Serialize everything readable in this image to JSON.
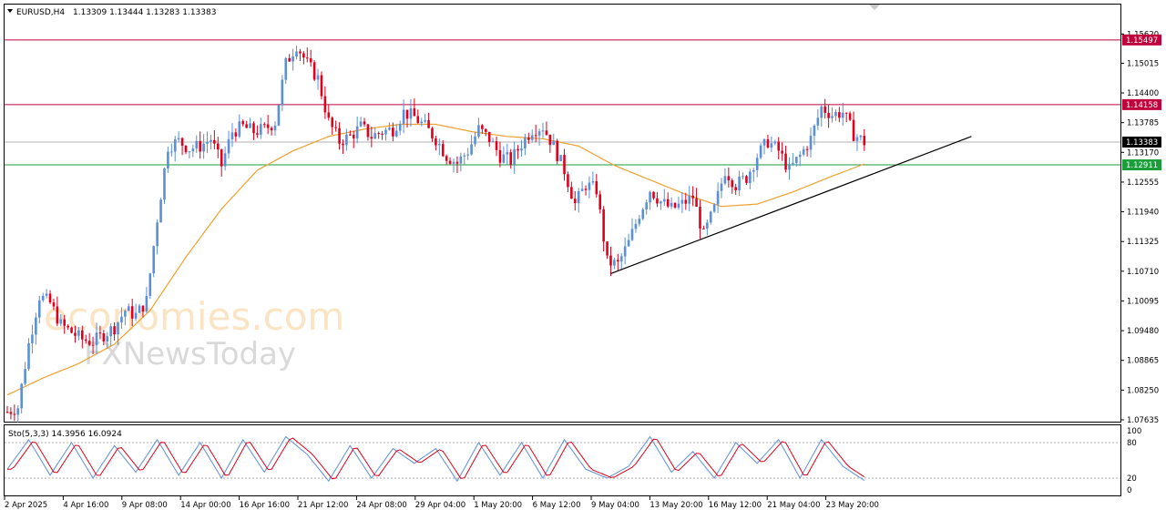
{
  "header": {
    "symbol": "EURUSD,H4",
    "ohlc": "1.13309 1.13444 1.13283 1.13383"
  },
  "watermark": {
    "brand": "economies.com",
    "sub": "FXNewsToday"
  },
  "chart_data": {
    "type": "candlestick",
    "price_axis": {
      "range": [
        1.07635,
        1.1572
      ],
      "ticks": [
        "1.15620",
        "1.15015",
        "1.14400",
        "1.13785",
        "1.13170",
        "1.12555",
        "1.11940",
        "1.11325",
        "1.10710",
        "1.10095",
        "1.09480",
        "1.08865",
        "1.08250",
        "1.07635"
      ]
    },
    "time_axis": {
      "ticks": [
        "2 Apr 2025",
        "4 Apr 16:00",
        "9 Apr 08:00",
        "14 Apr 00:00",
        "16 Apr 16:00",
        "21 Apr 12:00",
        "24 Apr 08:00",
        "29 Apr 04:00",
        "1 May 20:00",
        "6 May 12:00",
        "9 May 04:00",
        "13 May 20:00",
        "16 May 12:00",
        "21 May 04:00",
        "23 May 20:00"
      ]
    },
    "horizontal_levels": [
      {
        "label": "1.15497",
        "value": 1.15497,
        "color": "#c0003c"
      },
      {
        "label": "1.14158",
        "value": 1.14158,
        "color": "#c0003c"
      },
      {
        "label": "1.13383",
        "value": 1.13383,
        "color": "#000000"
      },
      {
        "label": "1.12911",
        "value": 1.12911,
        "color": "#1a9e3a"
      }
    ],
    "trendline": {
      "from": {
        "bar": 169,
        "price": 1.1066
      },
      "to": {
        "bar": 270,
        "price": 1.135
      },
      "color": "#000000"
    },
    "candle_colors": {
      "up": "#5b8fd9",
      "down": "#e0001b"
    },
    "ma_color": "#f0a030",
    "price_path": [
      [
        0,
        1.078
      ],
      [
        3,
        1.079
      ],
      [
        6,
        1.092
      ],
      [
        9,
        1.102
      ],
      [
        12,
        1.1005
      ],
      [
        15,
        1.096
      ],
      [
        18,
        1.0945
      ],
      [
        21,
        1.093
      ],
      [
        24,
        1.0925
      ],
      [
        27,
        1.094
      ],
      [
        30,
        1.0955
      ],
      [
        33,
        1.099
      ],
      [
        36,
        1.098
      ],
      [
        39,
        1.101
      ],
      [
        42,
        1.118
      ],
      [
        45,
        1.133
      ],
      [
        48,
        1.134
      ],
      [
        51,
        1.1325
      ],
      [
        54,
        1.133
      ],
      [
        57,
        1.1345
      ],
      [
        60,
        1.129
      ],
      [
        63,
        1.136
      ],
      [
        66,
        1.137
      ],
      [
        69,
        1.136
      ],
      [
        72,
        1.1365
      ],
      [
        75,
        1.138
      ],
      [
        78,
        1.15
      ],
      [
        81,
        1.154
      ],
      [
        84,
        1.15
      ],
      [
        87,
        1.147
      ],
      [
        90,
        1.138
      ],
      [
        93,
        1.134
      ],
      [
        96,
        1.135
      ],
      [
        99,
        1.137
      ],
      [
        102,
        1.135
      ],
      [
        105,
        1.136
      ],
      [
        108,
        1.1365
      ],
      [
        111,
        1.14
      ],
      [
        114,
        1.139
      ],
      [
        117,
        1.137
      ],
      [
        120,
        1.1345
      ],
      [
        123,
        1.131
      ],
      [
        126,
        1.1295
      ],
      [
        129,
        1.132
      ],
      [
        132,
        1.1365
      ],
      [
        135,
        1.1345
      ],
      [
        138,
        1.131
      ],
      [
        141,
        1.13
      ],
      [
        144,
        1.1335
      ],
      [
        147,
        1.1365
      ],
      [
        150,
        1.137
      ],
      [
        153,
        1.133
      ],
      [
        156,
        1.128
      ],
      [
        159,
        1.121
      ],
      [
        162,
        1.125
      ],
      [
        165,
        1.124
      ],
      [
        168,
        1.109
      ],
      [
        171,
        1.1085
      ],
      [
        174,
        1.113
      ],
      [
        177,
        1.119
      ],
      [
        180,
        1.124
      ],
      [
        183,
        1.1215
      ],
      [
        186,
        1.12
      ],
      [
        189,
        1.121
      ],
      [
        192,
        1.1225
      ],
      [
        195,
        1.1145
      ],
      [
        198,
        1.12
      ],
      [
        201,
        1.128
      ],
      [
        204,
        1.125
      ],
      [
        207,
        1.1265
      ],
      [
        210,
        1.131
      ],
      [
        213,
        1.134
      ],
      [
        216,
        1.132
      ],
      [
        219,
        1.128
      ],
      [
        222,
        1.131
      ],
      [
        225,
        1.1345
      ],
      [
        228,
        1.141
      ],
      [
        231,
        1.1395
      ],
      [
        234,
        1.14
      ],
      [
        237,
        1.1355
      ],
      [
        240,
        1.1338
      ]
    ],
    "ma_path": [
      [
        0,
        1.0815
      ],
      [
        10,
        1.085
      ],
      [
        20,
        1.088
      ],
      [
        30,
        1.092
      ],
      [
        40,
        1.099
      ],
      [
        50,
        1.11
      ],
      [
        60,
        1.12
      ],
      [
        70,
        1.128
      ],
      [
        80,
        1.132
      ],
      [
        90,
        1.135
      ],
      [
        100,
        1.1365
      ],
      [
        110,
        1.1375
      ],
      [
        120,
        1.1375
      ],
      [
        130,
        1.136
      ],
      [
        140,
        1.135
      ],
      [
        150,
        1.1345
      ],
      [
        160,
        1.133
      ],
      [
        170,
        1.129
      ],
      [
        180,
        1.126
      ],
      [
        190,
        1.123
      ],
      [
        200,
        1.1205
      ],
      [
        210,
        1.121
      ],
      [
        220,
        1.1235
      ],
      [
        230,
        1.1265
      ],
      [
        240,
        1.1293
      ]
    ],
    "stochastic": {
      "label": "Sto(5,3,3) 14.3956 16.0924",
      "range": [
        0,
        100
      ],
      "levels": [
        20,
        80
      ],
      "ticks": [
        "100",
        "80",
        "20",
        "0"
      ],
      "colors": {
        "main": "#5b8fd9",
        "signal": "#e0001b"
      },
      "path": [
        [
          0,
          35
        ],
        [
          6,
          85
        ],
        [
          12,
          25
        ],
        [
          18,
          80
        ],
        [
          24,
          20
        ],
        [
          30,
          75
        ],
        [
          36,
          30
        ],
        [
          42,
          85
        ],
        [
          48,
          25
        ],
        [
          54,
          80
        ],
        [
          60,
          20
        ],
        [
          66,
          85
        ],
        [
          72,
          30
        ],
        [
          78,
          90
        ],
        [
          84,
          60
        ],
        [
          90,
          15
        ],
        [
          96,
          75
        ],
        [
          102,
          20
        ],
        [
          108,
          70
        ],
        [
          114,
          45
        ],
        [
          120,
          70
        ],
        [
          126,
          15
        ],
        [
          132,
          80
        ],
        [
          138,
          25
        ],
        [
          144,
          80
        ],
        [
          150,
          20
        ],
        [
          156,
          85
        ],
        [
          162,
          35
        ],
        [
          168,
          20
        ],
        [
          174,
          40
        ],
        [
          180,
          90
        ],
        [
          186,
          30
        ],
        [
          192,
          65
        ],
        [
          198,
          20
        ],
        [
          204,
          80
        ],
        [
          210,
          45
        ],
        [
          216,
          85
        ],
        [
          222,
          20
        ],
        [
          228,
          85
        ],
        [
          234,
          40
        ],
        [
          240,
          16
        ]
      ]
    }
  }
}
